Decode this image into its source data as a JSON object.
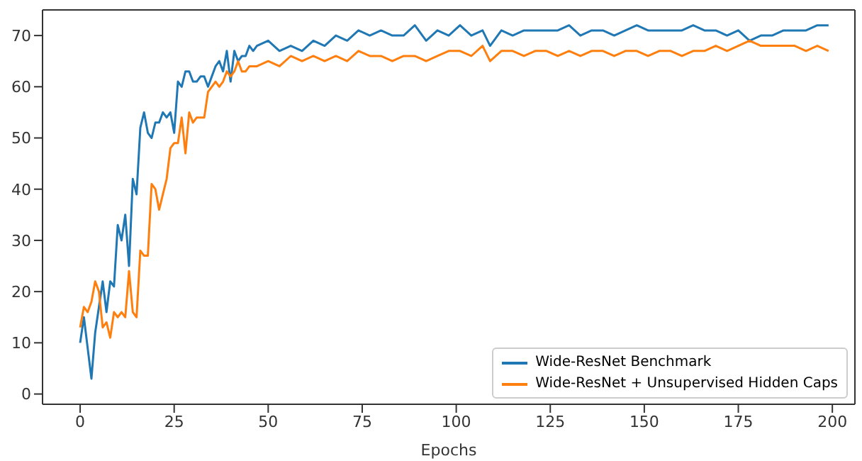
{
  "chart_data": {
    "type": "line",
    "xlabel": "Epochs",
    "x": [
      0,
      1,
      2,
      3,
      4,
      5,
      6,
      7,
      8,
      9,
      10,
      11,
      12,
      13,
      14,
      15,
      16,
      17,
      18,
      19,
      20,
      21,
      22,
      23,
      24,
      25,
      26,
      27,
      28,
      29,
      30,
      31,
      32,
      33,
      34,
      35,
      36,
      37,
      38,
      39,
      40,
      41,
      42,
      43,
      44,
      45,
      46,
      47,
      50,
      53,
      56,
      59,
      62,
      65,
      68,
      71,
      74,
      77,
      80,
      83,
      86,
      89,
      92,
      95,
      98,
      101,
      104,
      107,
      109,
      112,
      115,
      118,
      121,
      124,
      127,
      130,
      133,
      136,
      139,
      142,
      145,
      148,
      151,
      154,
      157,
      160,
      163,
      166,
      169,
      172,
      175,
      178,
      181,
      184,
      187,
      190,
      193,
      196,
      199
    ],
    "series": [
      {
        "name": "Wide-ResNet Benchmark",
        "color": "#1f77b4",
        "values": [
          10,
          15,
          9,
          3,
          12,
          17,
          22,
          16,
          22,
          21,
          33,
          30,
          35,
          25,
          42,
          39,
          52,
          55,
          51,
          50,
          53,
          53,
          55,
          54,
          55,
          51,
          61,
          60,
          63,
          63,
          61,
          61,
          62,
          62,
          60,
          62,
          64,
          65,
          63,
          67,
          61,
          67,
          65,
          66,
          66,
          68,
          67,
          68,
          69,
          67,
          68,
          67,
          69,
          68,
          70,
          69,
          71,
          70,
          71,
          70,
          70,
          72,
          69,
          71,
          70,
          72,
          70,
          71,
          68,
          71,
          70,
          71,
          71,
          71,
          71,
          72,
          70,
          71,
          71,
          70,
          71,
          72,
          71,
          71,
          71,
          71,
          72,
          71,
          71,
          70,
          71,
          69,
          70,
          70,
          71,
          71,
          71,
          72,
          72
        ]
      },
      {
        "name": "Wide-ResNet + Unsupervised Hidden Caps",
        "color": "#ff7f0e",
        "values": [
          13,
          17,
          16,
          18,
          22,
          20,
          13,
          14,
          11,
          16,
          15,
          16,
          15,
          24,
          16,
          15,
          28,
          27,
          27,
          41,
          40,
          36,
          39,
          42,
          48,
          49,
          49,
          54,
          47,
          55,
          53,
          54,
          54,
          54,
          59,
          60,
          61,
          60,
          61,
          63,
          62,
          63,
          65,
          63,
          63,
          64,
          64,
          64,
          65,
          64,
          66,
          65,
          66,
          65,
          66,
          65,
          67,
          66,
          66,
          65,
          66,
          66,
          65,
          66,
          67,
          67,
          66,
          68,
          65,
          67,
          67,
          66,
          67,
          67,
          66,
          67,
          66,
          67,
          67,
          66,
          67,
          67,
          66,
          67,
          67,
          66,
          67,
          67,
          68,
          67,
          68,
          69,
          68,
          68,
          68,
          68,
          67,
          68,
          67
        ]
      }
    ],
    "xlim": [
      -10,
      206
    ],
    "xticks": [
      0,
      25,
      50,
      75,
      100,
      125,
      150,
      175,
      200
    ],
    "ylim": [
      -2,
      75
    ],
    "yticks": [
      0,
      10,
      20,
      30,
      40,
      50,
      60,
      70
    ],
    "legend": "bottom right",
    "grid": false
  }
}
